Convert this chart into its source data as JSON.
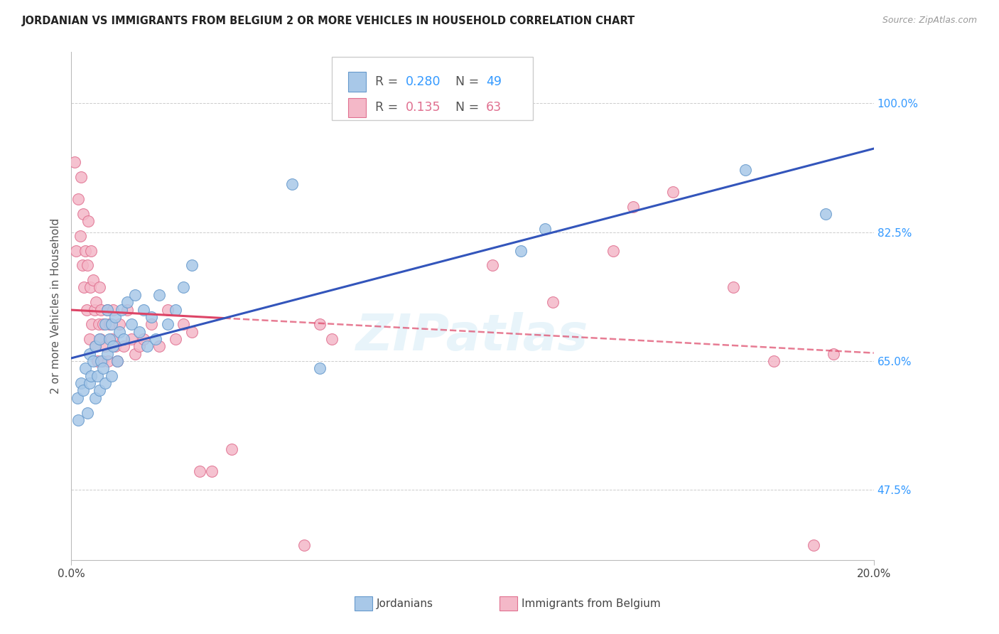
{
  "title": "JORDANIAN VS IMMIGRANTS FROM BELGIUM 2 OR MORE VEHICLES IN HOUSEHOLD CORRELATION CHART",
  "source": "Source: ZipAtlas.com",
  "ylabel": "2 or more Vehicles in Household",
  "yticks": [
    47.5,
    65.0,
    82.5,
    100.0
  ],
  "ytick_labels": [
    "47.5%",
    "65.0%",
    "82.5%",
    "100.0%"
  ],
  "xmin": 0.0,
  "xmax": 20.0,
  "ymin": 38.0,
  "ymax": 107.0,
  "blue_R": 0.28,
  "blue_N": 49,
  "pink_R": 0.135,
  "pink_N": 63,
  "blue_scatter_color": "#a8c8e8",
  "blue_edge_color": "#6699cc",
  "pink_scatter_color": "#f4b8c8",
  "pink_edge_color": "#e07090",
  "blue_line_color": "#3355bb",
  "pink_line_color": "#dd4466",
  "watermark": "ZIPatlas",
  "blue_points_x": [
    0.15,
    0.18,
    0.25,
    0.3,
    0.35,
    0.4,
    0.45,
    0.45,
    0.5,
    0.55,
    0.6,
    0.6,
    0.65,
    0.7,
    0.7,
    0.75,
    0.8,
    0.85,
    0.85,
    0.9,
    0.9,
    0.95,
    1.0,
    1.0,
    1.05,
    1.1,
    1.15,
    1.2,
    1.25,
    1.3,
    1.4,
    1.5,
    1.6,
    1.7,
    1.8,
    1.9,
    2.0,
    2.1,
    2.2,
    2.4,
    2.6,
    2.8,
    3.0,
    5.5,
    6.2,
    11.2,
    11.8,
    16.8,
    18.8
  ],
  "blue_points_y": [
    60,
    57,
    62,
    61,
    64,
    58,
    62,
    66,
    63,
    65,
    60,
    67,
    63,
    61,
    68,
    65,
    64,
    62,
    70,
    66,
    72,
    68,
    63,
    70,
    67,
    71,
    65,
    69,
    72,
    68,
    73,
    70,
    74,
    69,
    72,
    67,
    71,
    68,
    74,
    70,
    72,
    75,
    78,
    89,
    64,
    80,
    83,
    91,
    85
  ],
  "pink_points_x": [
    0.08,
    0.12,
    0.18,
    0.22,
    0.25,
    0.28,
    0.3,
    0.32,
    0.35,
    0.38,
    0.4,
    0.42,
    0.45,
    0.48,
    0.5,
    0.52,
    0.55,
    0.58,
    0.6,
    0.62,
    0.65,
    0.68,
    0.7,
    0.72,
    0.75,
    0.78,
    0.8,
    0.85,
    0.9,
    0.92,
    0.95,
    1.0,
    1.05,
    1.1,
    1.15,
    1.2,
    1.3,
    1.4,
    1.5,
    1.6,
    1.7,
    1.8,
    2.0,
    2.2,
    2.4,
    2.6,
    2.8,
    3.0,
    3.2,
    3.5,
    4.0,
    5.8,
    6.2,
    6.5,
    10.5,
    12.0,
    13.5,
    14.0,
    15.0,
    16.5,
    17.5,
    18.5,
    19.0
  ],
  "pink_points_y": [
    92,
    80,
    87,
    82,
    90,
    78,
    85,
    75,
    80,
    72,
    78,
    84,
    68,
    75,
    80,
    70,
    76,
    72,
    67,
    73,
    65,
    70,
    75,
    68,
    72,
    65,
    70,
    67,
    72,
    65,
    70,
    68,
    72,
    67,
    65,
    70,
    67,
    72,
    68,
    66,
    67,
    68,
    70,
    67,
    72,
    68,
    70,
    69,
    50,
    50,
    53,
    40,
    70,
    68,
    78,
    73,
    80,
    86,
    88,
    75,
    65,
    40,
    66
  ]
}
